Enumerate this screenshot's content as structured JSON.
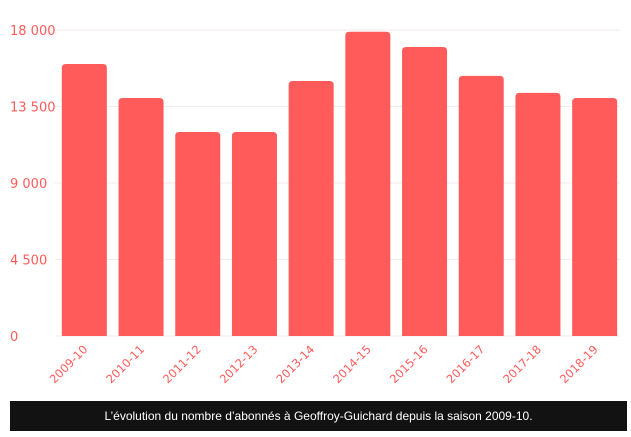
{
  "caption": "L’évolution du nombre d’abonnés à Geoffroy-Guichard depuis la saison 2009-10.",
  "colors": {
    "bar": "#ff5b5b",
    "axis_text": "#ff5b5b",
    "grid": "#f6eaea",
    "caption_bg": "#121212"
  },
  "chart_data": {
    "type": "bar",
    "categories": [
      "2009-10",
      "2010-11",
      "2011-12",
      "2012-13",
      "2013-14",
      "2014-15",
      "2015-16",
      "2016-17",
      "2017-18",
      "2018-19"
    ],
    "values": [
      16000,
      14000,
      12000,
      12000,
      15000,
      17900,
      17000,
      15300,
      14300,
      14000
    ],
    "yticks": [
      "0",
      "4 500",
      "9 000",
      "13 500",
      "18 000"
    ],
    "ytick_values": [
      0,
      4500,
      9000,
      13500,
      18000
    ],
    "ylim": [
      0,
      18000
    ],
    "grid": true,
    "legend": "none"
  }
}
